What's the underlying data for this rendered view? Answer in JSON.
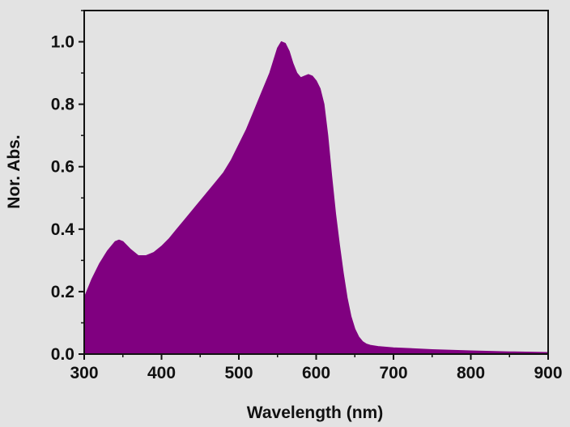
{
  "chart_data": {
    "type": "area",
    "title": "",
    "xlabel": "Wavelength (nm)",
    "ylabel": "Nor. Abs.",
    "xlim": [
      300,
      900
    ],
    "ylim": [
      0.0,
      1.1
    ],
    "x_ticks": [
      300,
      400,
      500,
      600,
      700,
      800,
      900
    ],
    "x_tick_labels": [
      "300",
      "400",
      "500",
      "600",
      "700",
      "800",
      "900"
    ],
    "y_ticks": [
      0.0,
      0.2,
      0.4,
      0.6,
      0.8,
      1.0
    ],
    "y_tick_labels": [
      "0.0",
      "0.2",
      "0.4",
      "0.6",
      "0.8",
      "1.0"
    ],
    "grid": false,
    "legend": "none",
    "fill_color": "#800080",
    "series": [
      {
        "x": [
          300,
          310,
          320,
          330,
          340,
          345,
          350,
          360,
          370,
          380,
          390,
          400,
          410,
          420,
          430,
          440,
          450,
          460,
          470,
          480,
          490,
          500,
          510,
          520,
          530,
          540,
          545,
          550,
          555,
          560,
          565,
          570,
          575,
          580,
          585,
          590,
          595,
          600,
          605,
          610,
          615,
          620,
          625,
          630,
          635,
          640,
          645,
          650,
          655,
          660,
          665,
          670,
          680,
          700,
          750,
          800,
          850,
          900
        ],
        "y": [
          0.18,
          0.24,
          0.29,
          0.33,
          0.36,
          0.365,
          0.36,
          0.335,
          0.315,
          0.315,
          0.325,
          0.345,
          0.37,
          0.4,
          0.43,
          0.46,
          0.49,
          0.52,
          0.55,
          0.58,
          0.62,
          0.67,
          0.72,
          0.78,
          0.84,
          0.9,
          0.94,
          0.98,
          1.0,
          0.995,
          0.97,
          0.93,
          0.9,
          0.885,
          0.89,
          0.895,
          0.89,
          0.875,
          0.85,
          0.8,
          0.7,
          0.57,
          0.45,
          0.35,
          0.26,
          0.18,
          0.12,
          0.08,
          0.055,
          0.04,
          0.032,
          0.028,
          0.024,
          0.02,
          0.014,
          0.01,
          0.007,
          0.005
        ]
      }
    ]
  }
}
